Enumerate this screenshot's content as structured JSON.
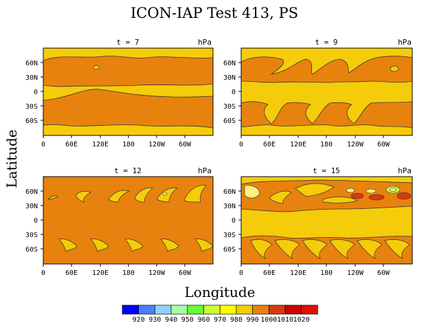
{
  "chart_data": {
    "type": "contour",
    "title": "ICON-IAP Test 413, PS",
    "xlabel": "Longitude",
    "ylabel": "Latitude",
    "units": "hPa",
    "x_ticks": [
      "0",
      "60E",
      "120E",
      "180",
      "120W",
      "60W"
    ],
    "y_ticks": [
      "60N",
      "30N",
      "0",
      "30S",
      "60S"
    ],
    "colorbar": {
      "levels": [
        "920",
        "930",
        "940",
        "950",
        "960",
        "970",
        "980",
        "990",
        "1000",
        "1010",
        "1020"
      ],
      "colors": [
        "#0000ff",
        "#4a7dff",
        "#8fd2ff",
        "#aaffaa",
        "#66ff33",
        "#ccff33",
        "#ffff00",
        "#f5cc0a",
        "#e8820e",
        "#d83a10",
        "#cc0000",
        "#dd1100"
      ]
    },
    "panels": [
      {
        "title": "t = 7",
        "units": "hPa"
      },
      {
        "title": "t = 9",
        "units": "hPa"
      },
      {
        "title": "t = 12",
        "units": "hPa"
      },
      {
        "title": "t = 15",
        "units": "hPa"
      }
    ]
  }
}
